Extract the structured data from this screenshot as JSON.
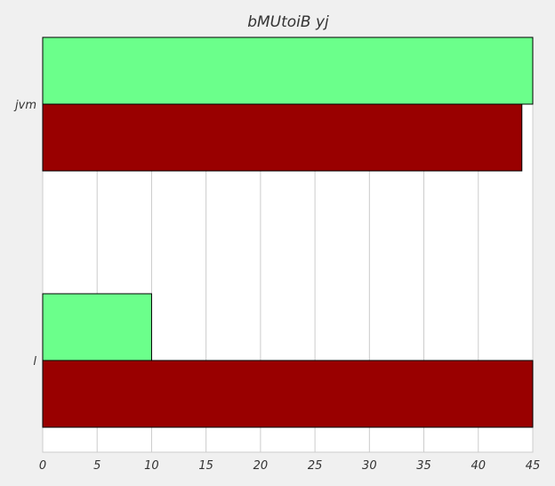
{
  "chart_data": {
    "type": "bar",
    "orientation": "horizontal",
    "title": "bMUtoiB yj",
    "xlabel": "",
    "ylabel": "",
    "categories": [
      "jvm",
      "l"
    ],
    "series": [
      {
        "color": "#6bff8b",
        "values": [
          45,
          10
        ]
      },
      {
        "color": "#990000",
        "values": [
          44,
          45
        ]
      }
    ],
    "xlim": [
      0,
      45
    ],
    "xticks": [
      0,
      5,
      10,
      15,
      20,
      25,
      30,
      35,
      40,
      45
    ],
    "grid": true,
    "legend": "none"
  }
}
